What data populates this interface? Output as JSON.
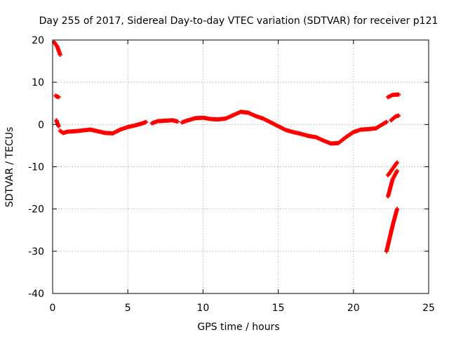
{
  "chart_data": {
    "type": "scatter",
    "title": "Day 255 of 2017, Sidereal Day-to-day VTEC variation (SDTVAR) for receiver p121",
    "xlabel": "GPS time / hours",
    "ylabel": "SDTVAR / TECUs",
    "xlim": [
      0,
      25
    ],
    "ylim": [
      -40,
      20
    ],
    "xticks": [
      0,
      5,
      10,
      15,
      20,
      25
    ],
    "yticks": [
      -40,
      -30,
      -20,
      -10,
      0,
      10,
      20
    ],
    "grid": true,
    "marker_color": "#ff0000",
    "series": [
      {
        "name": "SDTVAR",
        "segments": [
          [
            [
              0.1,
              19.5
            ],
            [
              0.2,
              19.0
            ],
            [
              0.3,
              18.5
            ],
            [
              0.35,
              18.0
            ],
            [
              0.4,
              17.5
            ],
            [
              0.45,
              17.0
            ],
            [
              0.5,
              16.5
            ]
          ],
          [
            [
              0.2,
              6.8
            ],
            [
              0.3,
              6.6
            ],
            [
              0.4,
              6.5
            ]
          ],
          [
            [
              0.25,
              1.0
            ],
            [
              0.3,
              0.5
            ],
            [
              0.35,
              0.0
            ],
            [
              0.4,
              -0.4
            ]
          ],
          [
            [
              0.5,
              -1.5
            ],
            [
              0.7,
              -2.0
            ],
            [
              1.0,
              -1.7
            ],
            [
              1.5,
              -1.6
            ],
            [
              2.0,
              -1.4
            ],
            [
              2.5,
              -1.2
            ],
            [
              3.0,
              -1.6
            ],
            [
              3.5,
              -2.0
            ],
            [
              4.0,
              -2.1
            ],
            [
              4.5,
              -1.2
            ],
            [
              5.0,
              -0.6
            ],
            [
              5.5,
              -0.2
            ],
            [
              6.0,
              0.3
            ],
            [
              6.2,
              0.6
            ]
          ],
          [
            [
              6.6,
              0.3
            ],
            [
              7.0,
              0.8
            ],
            [
              7.5,
              0.9
            ],
            [
              8.0,
              1.0
            ],
            [
              8.3,
              0.7
            ]
          ],
          [
            [
              8.6,
              0.5
            ],
            [
              9.0,
              1.0
            ],
            [
              9.5,
              1.5
            ],
            [
              10.0,
              1.6
            ],
            [
              10.5,
              1.3
            ],
            [
              11.0,
              1.2
            ],
            [
              11.5,
              1.4
            ],
            [
              12.0,
              2.2
            ],
            [
              12.5,
              3.0
            ],
            [
              13.0,
              2.8
            ],
            [
              13.5,
              2.0
            ],
            [
              14.0,
              1.4
            ],
            [
              14.5,
              0.5
            ],
            [
              15.0,
              -0.4
            ],
            [
              15.5,
              -1.3
            ],
            [
              16.0,
              -1.8
            ],
            [
              16.5,
              -2.2
            ],
            [
              17.0,
              -2.7
            ],
            [
              17.5,
              -3.0
            ],
            [
              18.0,
              -3.8
            ],
            [
              18.5,
              -4.5
            ],
            [
              19.0,
              -4.4
            ],
            [
              19.5,
              -3.0
            ],
            [
              20.0,
              -1.8
            ],
            [
              20.5,
              -1.2
            ],
            [
              21.0,
              -1.1
            ],
            [
              21.5,
              -0.9
            ],
            [
              22.0,
              0.2
            ],
            [
              22.2,
              0.6
            ]
          ],
          [
            [
              22.3,
              6.5
            ],
            [
              22.6,
              7.0
            ],
            [
              23.0,
              7.1
            ]
          ],
          [
            [
              22.5,
              1.0
            ],
            [
              22.8,
              1.9
            ],
            [
              23.0,
              2.1
            ]
          ],
          [
            [
              22.3,
              -12.0
            ],
            [
              22.6,
              -10.5
            ],
            [
              22.9,
              -9.0
            ]
          ],
          [
            [
              22.3,
              -17.0
            ],
            [
              22.6,
              -13.0
            ],
            [
              22.9,
              -11.0
            ]
          ],
          [
            [
              22.2,
              -30.0
            ],
            [
              22.4,
              -27.0
            ],
            [
              22.6,
              -24.0
            ],
            [
              22.9,
              -20.0
            ]
          ]
        ]
      }
    ]
  }
}
